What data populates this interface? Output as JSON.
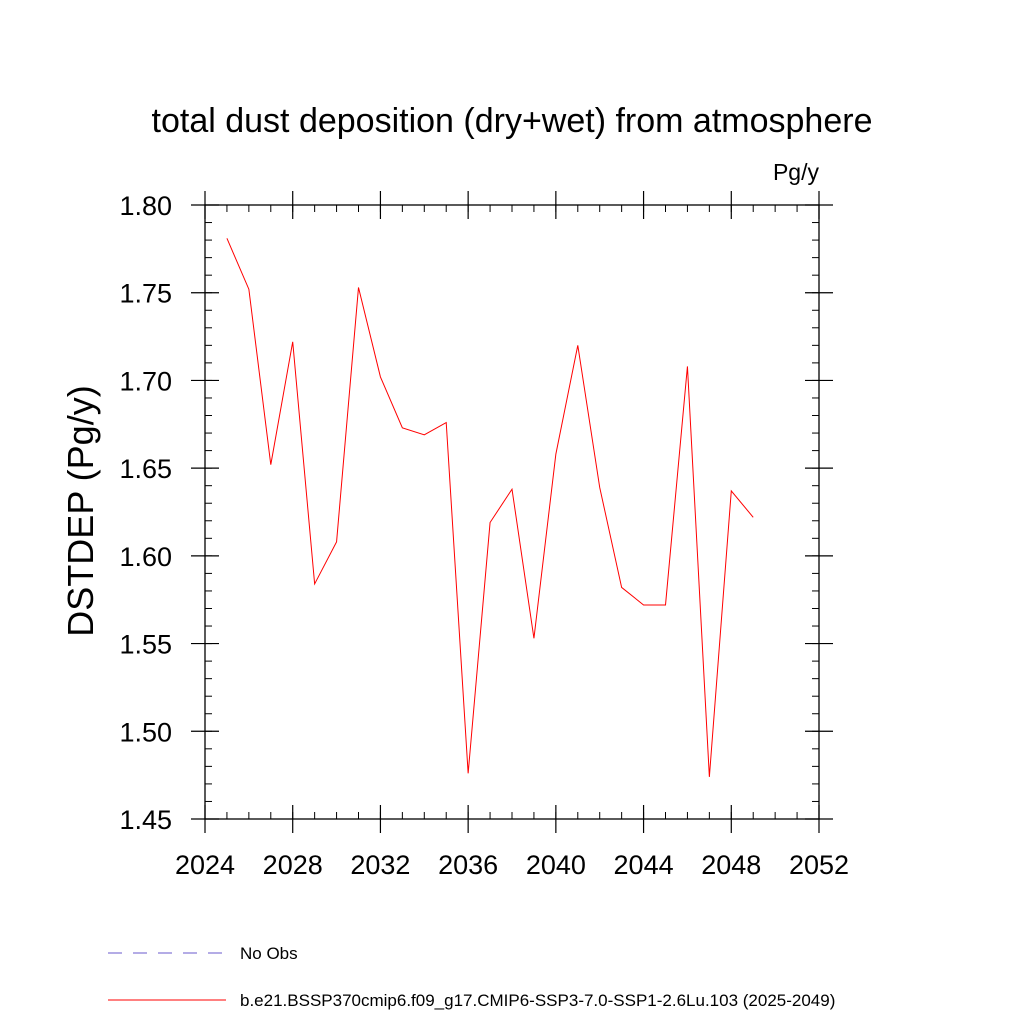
{
  "chart_data": {
    "type": "line",
    "title": "total dust deposition (dry+wet) from atmosphere",
    "units_label": "Pg/y",
    "ylabel": "DSTDEP  (Pg/y)",
    "xlabel": "",
    "xlim": [
      2024,
      2052
    ],
    "ylim": [
      1.45,
      1.8
    ],
    "x_ticks": [
      2024,
      2028,
      2032,
      2036,
      2040,
      2044,
      2048,
      2052
    ],
    "y_ticks": [
      "1.80",
      "1.75",
      "1.70",
      "1.65",
      "1.60",
      "1.55",
      "1.50",
      "1.45"
    ],
    "x_minor_step": 1,
    "y_minor_step": 0.01,
    "grid": false,
    "legend_position": "bottom-left",
    "series": [
      {
        "name": "b.e21.BSSP370cmip6.f09_g17.CMIP6-SSP3-7.0-SSP1-2.6Lu.103 (2025-2049)",
        "color": "#ff0000",
        "style": "solid",
        "x": [
          2025,
          2026,
          2027,
          2028,
          2029,
          2030,
          2031,
          2032,
          2033,
          2034,
          2035,
          2036,
          2037,
          2038,
          2039,
          2040,
          2041,
          2042,
          2043,
          2044,
          2045,
          2046,
          2047,
          2048,
          2049
        ],
        "values": [
          1.781,
          1.752,
          1.652,
          1.722,
          1.584,
          1.608,
          1.753,
          1.702,
          1.673,
          1.669,
          1.676,
          1.476,
          1.619,
          1.638,
          1.553,
          1.658,
          1.72,
          1.639,
          1.582,
          1.572,
          1.572,
          1.708,
          1.474,
          1.637,
          1.622
        ]
      }
    ],
    "legend": [
      {
        "label": "No Obs",
        "color": "#6a5acd",
        "style": "dashed"
      },
      {
        "label": "b.e21.BSSP370cmip6.f09_g17.CMIP6-SSP3-7.0-SSP1-2.6Lu.103 (2025-2049)",
        "color": "#ff0000",
        "style": "solid"
      }
    ]
  }
}
